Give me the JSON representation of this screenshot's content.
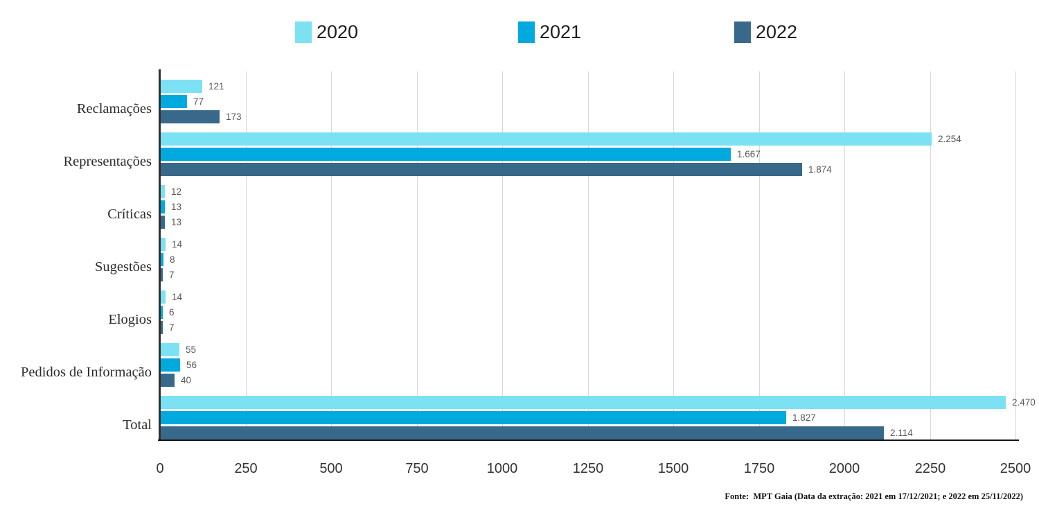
{
  "legend": {
    "items": [
      {
        "label": "2020",
        "color": "#7ce1f2"
      },
      {
        "label": "2021",
        "color": "#00a9de"
      },
      {
        "label": "2022",
        "color": "#38698b"
      }
    ]
  },
  "chart_data": {
    "type": "bar",
    "orientation": "horizontal",
    "title": "",
    "xlabel": "",
    "ylabel": "",
    "xlim": [
      0,
      2500
    ],
    "x_ticks": [
      0,
      250,
      500,
      750,
      1000,
      1250,
      1500,
      1750,
      2000,
      2250,
      2500
    ],
    "x_tick_labels": [
      "0",
      "250",
      "500",
      "750",
      "1000",
      "1250",
      "1500",
      "1750",
      "2000",
      "2250",
      "2500"
    ],
    "grid": "vertical",
    "legend_position": "top",
    "categories": [
      "Reclamações",
      "Representações",
      "Críticas",
      "Sugestões",
      "Elogios",
      "Pedidos de Informação",
      "Total"
    ],
    "series": [
      {
        "name": "2020",
        "color": "#7ce1f2",
        "values": [
          121,
          2254,
          12,
          14,
          14,
          55,
          2470
        ],
        "value_labels": [
          "121",
          "2.254",
          "12",
          "14",
          "14",
          "55",
          "2.470"
        ]
      },
      {
        "name": "2021",
        "color": "#00a9de",
        "values": [
          77,
          1667,
          13,
          8,
          6,
          56,
          1827
        ],
        "value_labels": [
          "77",
          "1.667",
          "13",
          "8",
          "6",
          "56",
          "1.827"
        ]
      },
      {
        "name": "2022",
        "color": "#38698b",
        "values": [
          173,
          1874,
          13,
          7,
          7,
          40,
          2114
        ],
        "value_labels": [
          "173",
          "1.874",
          "13",
          "7",
          "7",
          "40",
          "2.114"
        ]
      }
    ]
  },
  "footer": {
    "source_label": "Fonte:",
    "source_text": " MPT Gaia (Data da extração: 2021 em 17/12/2021; e 2022 em 25/11/2022)"
  }
}
